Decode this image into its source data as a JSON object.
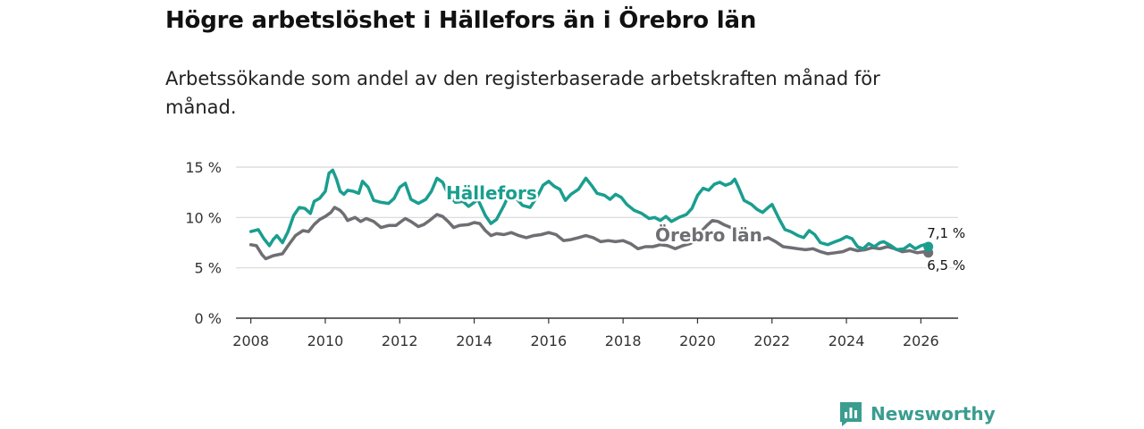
{
  "title": "Högre arbetslöshet i Hällefors än i Örebro län",
  "subtitle": "Arbetssökande som andel av den registerbaserade arbetskraften månad för månad.",
  "brand": "Newsworthy",
  "colors": {
    "hallefors": "#1a9e8f",
    "orebro": "#6e6e73",
    "grid": "#d8d8d8",
    "axis": "#333333",
    "logo": "#3a9d8f"
  },
  "chart_data": {
    "type": "line",
    "xlim": [
      2007.6,
      2027.0
    ],
    "ylim": [
      0,
      15
    ],
    "yticks": [
      {
        "v": 0,
        "label": "0 %"
      },
      {
        "v": 5,
        "label": "5 %"
      },
      {
        "v": 10,
        "label": "10 %"
      },
      {
        "v": 15,
        "label": "15 %"
      }
    ],
    "xticks": [
      {
        "v": 2008,
        "label": "2008"
      },
      {
        "v": 2010,
        "label": "2010"
      },
      {
        "v": 2012,
        "label": "2012"
      },
      {
        "v": 2014,
        "label": "2014"
      },
      {
        "v": 2016,
        "label": "2016"
      },
      {
        "v": 2018,
        "label": "2018"
      },
      {
        "v": 2020,
        "label": "2020"
      },
      {
        "v": 2022,
        "label": "2022"
      },
      {
        "v": 2024,
        "label": "2024"
      },
      {
        "v": 2026,
        "label": "2026"
      }
    ],
    "series": [
      {
        "name": "Hällefors",
        "label": "Hällefors",
        "end_label": "7,1 %",
        "points": [
          [
            2008.0,
            8.6
          ],
          [
            2008.2,
            8.8
          ],
          [
            2008.35,
            7.9
          ],
          [
            2008.5,
            7.2
          ],
          [
            2008.6,
            7.8
          ],
          [
            2008.7,
            8.2
          ],
          [
            2008.85,
            7.5
          ],
          [
            2009.0,
            8.6
          ],
          [
            2009.15,
            10.2
          ],
          [
            2009.3,
            11.0
          ],
          [
            2009.45,
            10.9
          ],
          [
            2009.6,
            10.4
          ],
          [
            2009.7,
            11.6
          ],
          [
            2009.85,
            11.9
          ],
          [
            2010.0,
            12.6
          ],
          [
            2010.1,
            14.4
          ],
          [
            2010.2,
            14.7
          ],
          [
            2010.3,
            13.8
          ],
          [
            2010.4,
            12.6
          ],
          [
            2010.5,
            12.3
          ],
          [
            2010.6,
            12.7
          ],
          [
            2010.75,
            12.6
          ],
          [
            2010.9,
            12.4
          ],
          [
            2011.0,
            13.6
          ],
          [
            2011.15,
            13.0
          ],
          [
            2011.3,
            11.7
          ],
          [
            2011.5,
            11.5
          ],
          [
            2011.7,
            11.4
          ],
          [
            2011.85,
            11.9
          ],
          [
            2012.0,
            13.0
          ],
          [
            2012.15,
            13.4
          ],
          [
            2012.3,
            11.8
          ],
          [
            2012.5,
            11.4
          ],
          [
            2012.7,
            11.8
          ],
          [
            2012.85,
            12.6
          ],
          [
            2013.0,
            13.9
          ],
          [
            2013.15,
            13.5
          ],
          [
            2013.3,
            12.3
          ],
          [
            2013.5,
            11.5
          ],
          [
            2013.7,
            11.6
          ],
          [
            2013.85,
            11.1
          ],
          [
            2014.0,
            11.5
          ],
          [
            2014.1,
            11.8
          ],
          [
            2014.3,
            10.2
          ],
          [
            2014.45,
            9.4
          ],
          [
            2014.6,
            9.8
          ],
          [
            2014.8,
            11.2
          ],
          [
            2015.0,
            12.8
          ],
          [
            2015.15,
            11.8
          ],
          [
            2015.3,
            11.2
          ],
          [
            2015.5,
            11.0
          ],
          [
            2015.7,
            12.1
          ],
          [
            2015.85,
            13.2
          ],
          [
            2016.0,
            13.6
          ],
          [
            2016.15,
            13.1
          ],
          [
            2016.3,
            12.8
          ],
          [
            2016.45,
            11.7
          ],
          [
            2016.6,
            12.3
          ],
          [
            2016.8,
            12.8
          ],
          [
            2017.0,
            13.9
          ],
          [
            2017.15,
            13.2
          ],
          [
            2017.3,
            12.4
          ],
          [
            2017.5,
            12.2
          ],
          [
            2017.65,
            11.8
          ],
          [
            2017.8,
            12.3
          ],
          [
            2017.95,
            12.0
          ],
          [
            2018.1,
            11.3
          ],
          [
            2018.3,
            10.7
          ],
          [
            2018.5,
            10.4
          ],
          [
            2018.7,
            9.9
          ],
          [
            2018.85,
            10.0
          ],
          [
            2019.0,
            9.7
          ],
          [
            2019.15,
            10.1
          ],
          [
            2019.3,
            9.6
          ],
          [
            2019.5,
            10.0
          ],
          [
            2019.7,
            10.3
          ],
          [
            2019.85,
            10.9
          ],
          [
            2020.0,
            12.2
          ],
          [
            2020.15,
            12.9
          ],
          [
            2020.3,
            12.7
          ],
          [
            2020.45,
            13.3
          ],
          [
            2020.6,
            13.5
          ],
          [
            2020.75,
            13.2
          ],
          [
            2020.9,
            13.4
          ],
          [
            2021.0,
            13.8
          ],
          [
            2021.1,
            13.0
          ],
          [
            2021.25,
            11.7
          ],
          [
            2021.45,
            11.3
          ],
          [
            2021.6,
            10.8
          ],
          [
            2021.75,
            10.5
          ],
          [
            2021.9,
            11.0
          ],
          [
            2022.0,
            11.3
          ],
          [
            2022.2,
            9.8
          ],
          [
            2022.35,
            8.8
          ],
          [
            2022.5,
            8.6
          ],
          [
            2022.7,
            8.2
          ],
          [
            2022.85,
            8.0
          ],
          [
            2023.0,
            8.7
          ],
          [
            2023.15,
            8.3
          ],
          [
            2023.3,
            7.5
          ],
          [
            2023.5,
            7.3
          ],
          [
            2023.7,
            7.6
          ],
          [
            2023.85,
            7.8
          ],
          [
            2024.0,
            8.1
          ],
          [
            2024.15,
            7.9
          ],
          [
            2024.3,
            7.1
          ],
          [
            2024.45,
            6.9
          ],
          [
            2024.6,
            7.4
          ],
          [
            2024.75,
            7.1
          ],
          [
            2024.9,
            7.5
          ],
          [
            2025.0,
            7.6
          ],
          [
            2025.2,
            7.2
          ],
          [
            2025.35,
            6.8
          ],
          [
            2025.55,
            6.9
          ],
          [
            2025.7,
            7.3
          ],
          [
            2025.85,
            6.9
          ],
          [
            2026.0,
            7.2
          ],
          [
            2026.1,
            7.3
          ],
          [
            2026.2,
            7.1
          ]
        ]
      },
      {
        "name": "Örebro län",
        "label": "Örebro län",
        "end_label": "6,5 %",
        "points": [
          [
            2008.0,
            7.3
          ],
          [
            2008.15,
            7.2
          ],
          [
            2008.3,
            6.3
          ],
          [
            2008.4,
            5.9
          ],
          [
            2008.6,
            6.2
          ],
          [
            2008.85,
            6.4
          ],
          [
            2009.0,
            7.2
          ],
          [
            2009.2,
            8.2
          ],
          [
            2009.4,
            8.7
          ],
          [
            2009.55,
            8.6
          ],
          [
            2009.7,
            9.3
          ],
          [
            2009.85,
            9.8
          ],
          [
            2010.0,
            10.1
          ],
          [
            2010.15,
            10.5
          ],
          [
            2010.25,
            11.0
          ],
          [
            2010.4,
            10.7
          ],
          [
            2010.5,
            10.3
          ],
          [
            2010.6,
            9.7
          ],
          [
            2010.8,
            10.0
          ],
          [
            2010.95,
            9.6
          ],
          [
            2011.1,
            9.9
          ],
          [
            2011.3,
            9.6
          ],
          [
            2011.5,
            9.0
          ],
          [
            2011.7,
            9.2
          ],
          [
            2011.9,
            9.2
          ],
          [
            2012.0,
            9.5
          ],
          [
            2012.15,
            9.9
          ],
          [
            2012.3,
            9.6
          ],
          [
            2012.5,
            9.1
          ],
          [
            2012.65,
            9.3
          ],
          [
            2012.8,
            9.7
          ],
          [
            2013.0,
            10.3
          ],
          [
            2013.15,
            10.1
          ],
          [
            2013.3,
            9.6
          ],
          [
            2013.45,
            9.0
          ],
          [
            2013.6,
            9.2
          ],
          [
            2013.85,
            9.3
          ],
          [
            2014.0,
            9.5
          ],
          [
            2014.15,
            9.4
          ],
          [
            2014.3,
            8.7
          ],
          [
            2014.45,
            8.2
          ],
          [
            2014.6,
            8.4
          ],
          [
            2014.8,
            8.3
          ],
          [
            2015.0,
            8.5
          ],
          [
            2015.2,
            8.2
          ],
          [
            2015.4,
            8.0
          ],
          [
            2015.6,
            8.2
          ],
          [
            2015.8,
            8.3
          ],
          [
            2016.0,
            8.5
          ],
          [
            2016.2,
            8.3
          ],
          [
            2016.4,
            7.7
          ],
          [
            2016.6,
            7.8
          ],
          [
            2016.8,
            8.0
          ],
          [
            2017.0,
            8.2
          ],
          [
            2017.2,
            8.0
          ],
          [
            2017.4,
            7.6
          ],
          [
            2017.6,
            7.7
          ],
          [
            2017.8,
            7.6
          ],
          [
            2018.0,
            7.7
          ],
          [
            2018.2,
            7.4
          ],
          [
            2018.4,
            6.9
          ],
          [
            2018.6,
            7.1
          ],
          [
            2018.8,
            7.1
          ],
          [
            2019.0,
            7.3
          ],
          [
            2019.2,
            7.2
          ],
          [
            2019.4,
            6.9
          ],
          [
            2019.6,
            7.2
          ],
          [
            2019.8,
            7.4
          ],
          [
            2020.0,
            7.8
          ],
          [
            2020.1,
            8.6
          ],
          [
            2020.25,
            9.2
          ],
          [
            2020.4,
            9.7
          ],
          [
            2020.55,
            9.6
          ],
          [
            2020.7,
            9.3
          ],
          [
            2020.9,
            9.0
          ],
          [
            2021.1,
            8.7
          ],
          [
            2021.3,
            8.3
          ],
          [
            2021.5,
            8.0
          ],
          [
            2021.7,
            7.8
          ],
          [
            2021.9,
            8.0
          ],
          [
            2022.1,
            7.6
          ],
          [
            2022.3,
            7.1
          ],
          [
            2022.5,
            7.0
          ],
          [
            2022.7,
            6.9
          ],
          [
            2022.9,
            6.8
          ],
          [
            2023.1,
            6.9
          ],
          [
            2023.3,
            6.6
          ],
          [
            2023.5,
            6.4
          ],
          [
            2023.7,
            6.5
          ],
          [
            2023.9,
            6.6
          ],
          [
            2024.1,
            6.9
          ],
          [
            2024.3,
            6.7
          ],
          [
            2024.5,
            6.8
          ],
          [
            2024.7,
            7.0
          ],
          [
            2024.9,
            6.9
          ],
          [
            2025.1,
            7.1
          ],
          [
            2025.3,
            6.9
          ],
          [
            2025.5,
            6.6
          ],
          [
            2025.7,
            6.7
          ],
          [
            2025.9,
            6.5
          ],
          [
            2026.1,
            6.6
          ],
          [
            2026.2,
            6.5
          ]
        ]
      }
    ]
  }
}
